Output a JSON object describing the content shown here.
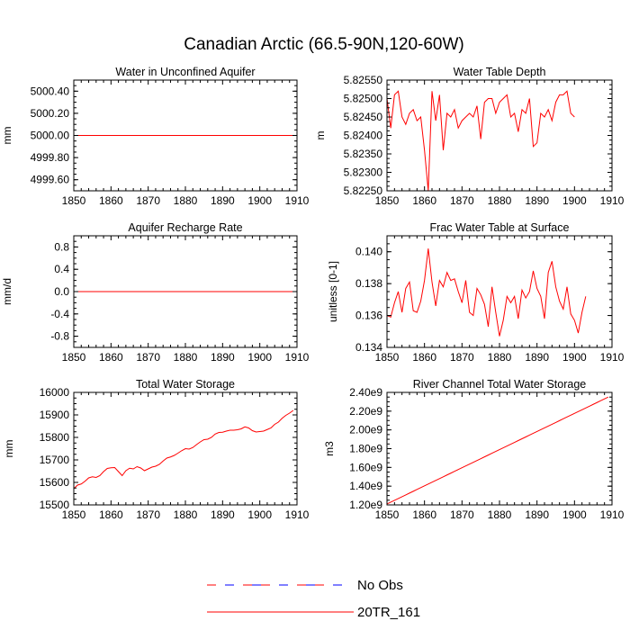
{
  "figure_title": "Canadian Arctic (66.5-90N,120-60W)",
  "colors": {
    "model": "#ff0000",
    "obs_red": "#ff0000",
    "obs_blue": "#0000ff",
    "axis": "#000000"
  },
  "legend": {
    "obs_label": "No Obs",
    "model_label": "20TR_161"
  },
  "chart_data": [
    {
      "id": "p1",
      "type": "line",
      "title": "Water in Unconfined Aquifer",
      "xlabel": "",
      "ylabel": "mm",
      "xlim": [
        1850,
        1910
      ],
      "ylim": [
        4999.5,
        5000.5
      ],
      "xticks": [
        1850,
        1860,
        1870,
        1880,
        1890,
        1900,
        1910
      ],
      "yticks": [
        4999.6,
        4999.8,
        5000.0,
        5000.2,
        5000.4
      ],
      "ytick_labels": [
        "4999.60",
        "4999.80",
        "5000.00",
        "5000.20",
        "5000.40"
      ],
      "series": [
        {
          "name": "20TR_161",
          "x_start": 1850,
          "x_step": 1,
          "values": [
            5000,
            5000,
            5000,
            5000,
            5000,
            5000,
            5000,
            5000,
            5000,
            5000,
            5000,
            5000,
            5000,
            5000,
            5000,
            5000,
            5000,
            5000,
            5000,
            5000,
            5000,
            5000,
            5000,
            5000,
            5000,
            5000,
            5000,
            5000,
            5000,
            5000,
            5000,
            5000,
            5000,
            5000,
            5000,
            5000,
            5000,
            5000,
            5000,
            5000,
            5000,
            5000,
            5000,
            5000,
            5000,
            5000,
            5000,
            5000,
            5000,
            5000,
            5000,
            5000,
            5000,
            5000,
            5000,
            5000,
            5000,
            5000,
            5000,
            5000
          ]
        }
      ]
    },
    {
      "id": "p2",
      "type": "line",
      "title": "Water Table Depth",
      "xlabel": "",
      "ylabel": "m",
      "xlim": [
        1850,
        1910
      ],
      "ylim": [
        5.8225,
        5.8255
      ],
      "xticks": [
        1850,
        1860,
        1870,
        1880,
        1890,
        1900,
        1910
      ],
      "yticks": [
        5.8225,
        5.823,
        5.8235,
        5.824,
        5.8245,
        5.825,
        5.8255
      ],
      "ytick_labels": [
        "5.82250",
        "5.82300",
        "5.82350",
        "5.82400",
        "5.82450",
        "5.82500",
        "5.82550"
      ],
      "series": [
        {
          "name": "20TR_161",
          "x_start": 1850,
          "x_step": 1,
          "values": [
            5.825,
            5.8242,
            5.8251,
            5.8252,
            5.8245,
            5.8243,
            5.8246,
            5.8247,
            5.8244,
            5.8245,
            5.8236,
            5.8225,
            5.8252,
            5.8244,
            5.8251,
            5.8236,
            5.8246,
            5.8245,
            5.8247,
            5.8242,
            5.8244,
            5.8245,
            5.8246,
            5.8245,
            5.8248,
            5.8239,
            5.8249,
            5.825,
            5.825,
            5.8246,
            5.8249,
            5.825,
            5.8251,
            5.8245,
            5.8246,
            5.8241,
            5.8247,
            5.8246,
            5.825,
            5.8237,
            5.8238,
            5.8246,
            5.8245,
            5.8247,
            5.8244,
            5.8249,
            5.8251,
            5.8251,
            5.8252,
            5.8246,
            5.8245
          ]
        }
      ]
    },
    {
      "id": "p3",
      "type": "line",
      "title": "Aquifer Recharge Rate",
      "xlabel": "",
      "ylabel": "mm/d",
      "xlim": [
        1850,
        1910
      ],
      "ylim": [
        -1.0,
        1.0
      ],
      "xticks": [
        1850,
        1860,
        1870,
        1880,
        1890,
        1900,
        1910
      ],
      "yticks": [
        -0.8,
        -0.4,
        0.0,
        0.4,
        0.8
      ],
      "ytick_labels": [
        "-0.8",
        "-0.4",
        "0.0",
        "0.4",
        "0.8"
      ],
      "series": [
        {
          "name": "20TR_161",
          "x_start": 1850,
          "x_step": 1,
          "values": [
            0,
            0,
            0,
            0,
            0,
            0,
            0,
            0,
            0,
            0,
            0,
            0,
            0,
            0,
            0,
            0,
            0,
            0,
            0,
            0,
            0,
            0,
            0,
            0,
            0,
            0,
            0,
            0,
            0,
            0,
            0,
            0,
            0,
            0,
            0,
            0,
            0,
            0,
            0,
            0,
            0,
            0,
            0,
            0,
            0,
            0,
            0,
            0,
            0,
            0,
            0,
            0,
            0,
            0,
            0,
            0,
            0,
            0,
            0,
            0
          ]
        }
      ]
    },
    {
      "id": "p4",
      "type": "line",
      "title": "Frac Water Table at Surface",
      "xlabel": "",
      "ylabel": "unitless [0-1]",
      "xlim": [
        1850,
        1910
      ],
      "ylim": [
        0.134,
        0.141
      ],
      "xticks": [
        1850,
        1860,
        1870,
        1880,
        1890,
        1900,
        1910
      ],
      "yticks": [
        0.134,
        0.136,
        0.138,
        0.14
      ],
      "ytick_labels": [
        "0.134",
        "0.136",
        "0.138",
        "0.140"
      ],
      "series": [
        {
          "name": "20TR_161",
          "x_start": 1850,
          "x_step": 1,
          "values": [
            0.136,
            0.1359,
            0.1368,
            0.1375,
            0.1362,
            0.1377,
            0.1381,
            0.1363,
            0.1362,
            0.1369,
            0.1382,
            0.1402,
            0.1381,
            0.1366,
            0.1382,
            0.1378,
            0.1387,
            0.1382,
            0.1383,
            0.1375,
            0.1368,
            0.1382,
            0.1362,
            0.136,
            0.1377,
            0.1373,
            0.1367,
            0.1353,
            0.1378,
            0.1362,
            0.1347,
            0.1357,
            0.1372,
            0.1368,
            0.1372,
            0.1358,
            0.1376,
            0.1371,
            0.1375,
            0.1388,
            0.1377,
            0.1372,
            0.1358,
            0.1387,
            0.1394,
            0.1378,
            0.1369,
            0.1364,
            0.1378,
            0.1361,
            0.1357,
            0.1349,
            0.1362,
            0.1372
          ]
        }
      ]
    },
    {
      "id": "p5",
      "type": "line",
      "title": "Total Water Storage",
      "xlabel": "",
      "ylabel": "mm",
      "xlim": [
        1850,
        1910
      ],
      "ylim": [
        15500,
        16000
      ],
      "xticks": [
        1850,
        1860,
        1870,
        1880,
        1890,
        1900,
        1910
      ],
      "yticks": [
        15500,
        15600,
        15700,
        15800,
        15900,
        16000
      ],
      "ytick_labels": [
        "15500",
        "15600",
        "15700",
        "15800",
        "15900",
        "16000"
      ],
      "series": [
        {
          "name": "20TR_161",
          "x_start": 1850,
          "x_step": 1,
          "values": [
            15572,
            15588,
            15593,
            15605,
            15620,
            15625,
            15622,
            15630,
            15648,
            15662,
            15665,
            15666,
            15648,
            15630,
            15652,
            15663,
            15660,
            15670,
            15664,
            15652,
            15660,
            15668,
            15672,
            15680,
            15695,
            15708,
            15713,
            15720,
            15730,
            15741,
            15750,
            15748,
            15755,
            15768,
            15780,
            15790,
            15792,
            15800,
            15815,
            15822,
            15823,
            15828,
            15832,
            15832,
            15834,
            15838,
            15847,
            15842,
            15830,
            15824,
            15826,
            15828,
            15835,
            15842,
            15858,
            15868,
            15885,
            15898,
            15908,
            15920
          ]
        }
      ]
    },
    {
      "id": "p6",
      "type": "line",
      "title": "River Channel Total Water Storage",
      "xlabel": "",
      "ylabel": "m3",
      "xlim": [
        1850,
        1910
      ],
      "ylim": [
        1200000000.0,
        2400000000.0
      ],
      "xticks": [
        1850,
        1860,
        1870,
        1880,
        1890,
        1900,
        1910
      ],
      "yticks": [
        1200000000.0,
        1400000000.0,
        1600000000.0,
        1800000000.0,
        2000000000.0,
        2200000000.0,
        2400000000.0
      ],
      "ytick_labels": [
        "1.20e9",
        "1.40e9",
        "1.60e9",
        "1.80e9",
        "2.00e9",
        "2.20e9",
        "2.40e9"
      ],
      "series": [
        {
          "name": "20TR_161",
          "x_start": 1850,
          "x_step": 1,
          "linear": [
            1210000000.0,
            2350000000.0
          ],
          "count": 60
        }
      ]
    }
  ]
}
